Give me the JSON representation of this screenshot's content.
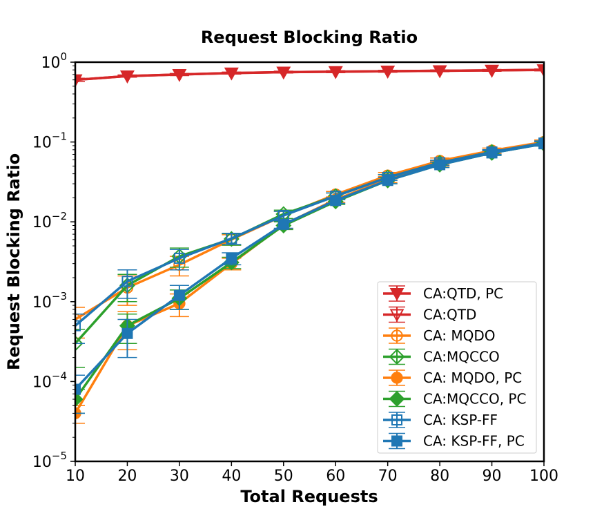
{
  "chart_data": {
    "type": "line",
    "title": "Request Blocking Ratio",
    "xlabel": "Total Requests",
    "ylabel": "Request Blocking Ratio",
    "x": [
      10,
      20,
      30,
      40,
      50,
      60,
      70,
      80,
      90,
      100
    ],
    "xlim": [
      10,
      100
    ],
    "ylim": [
      1e-05,
      1
    ],
    "yscale": "log",
    "x_ticks": [
      "10",
      "20",
      "30",
      "40",
      "50",
      "60",
      "70",
      "80",
      "90",
      "100"
    ],
    "y_ticks": [
      {
        "value": 1e-05,
        "base": "10",
        "exp": "−5"
      },
      {
        "value": 0.0001,
        "base": "10",
        "exp": "−4"
      },
      {
        "value": 0.001,
        "base": "10",
        "exp": "−3"
      },
      {
        "value": 0.01,
        "base": "10",
        "exp": "−2"
      },
      {
        "value": 0.1,
        "base": "10",
        "exp": "−1"
      },
      {
        "value": 1,
        "base": "10",
        "exp": "0"
      }
    ],
    "grid": false,
    "legend_position": "lower-right",
    "series": [
      {
        "name": "CA:QTD, PC",
        "color": "#d62728",
        "marker": "triangle-down",
        "filled": true,
        "values": [
          0.6,
          0.67,
          0.7,
          0.73,
          0.75,
          0.76,
          0.77,
          0.78,
          0.79,
          0.8
        ],
        "errors": [
          0.03,
          0.02,
          0.02,
          0.02,
          0.02,
          0.02,
          0.02,
          0.02,
          0.02,
          0.02
        ]
      },
      {
        "name": "CA:QTD",
        "color": "#d62728",
        "marker": "triangle-down",
        "filled": false,
        "values": [
          0.6,
          0.67,
          0.7,
          0.73,
          0.75,
          0.76,
          0.77,
          0.78,
          0.79,
          0.8
        ],
        "errors": [
          0.03,
          0.02,
          0.02,
          0.02,
          0.02,
          0.02,
          0.02,
          0.02,
          0.02,
          0.02
        ]
      },
      {
        "name": "CA: MQDO",
        "color": "#ff7f0e",
        "marker": "circle",
        "filled": false,
        "values": [
          0.0006,
          0.0015,
          0.0029,
          0.006,
          0.012,
          0.022,
          0.038,
          0.058,
          0.078,
          0.1
        ],
        "errors": [
          0.00025,
          0.0006,
          0.0008,
          0.0009,
          0.0015,
          0.002,
          0.0035,
          0.005,
          0.006,
          0.006
        ]
      },
      {
        "name": "CA:MQCCO",
        "color": "#2ca02c",
        "marker": "diamond",
        "filled": false,
        "values": [
          0.0003,
          0.0016,
          0.0037,
          0.0061,
          0.0125,
          0.021,
          0.036,
          0.055,
          0.075,
          0.097
        ],
        "errors": [
          0.00015,
          0.0006,
          0.001,
          0.001,
          0.0015,
          0.002,
          0.003,
          0.004,
          0.005,
          0.006
        ]
      },
      {
        "name": "CA: MQDO, PC",
        "color": "#ff7f0e",
        "marker": "circle",
        "filled": true,
        "values": [
          4e-05,
          0.0005,
          0.00095,
          0.003,
          0.0092,
          0.019,
          0.034,
          0.054,
          0.075,
          0.097
        ],
        "errors": [
          1e-05,
          0.00025,
          0.0003,
          0.0005,
          0.001,
          0.0015,
          0.003,
          0.004,
          0.005,
          0.006
        ]
      },
      {
        "name": "CA:MQCCO, PC",
        "color": "#2ca02c",
        "marker": "diamond",
        "filled": true,
        "values": [
          6e-05,
          0.0005,
          0.0011,
          0.0031,
          0.009,
          0.018,
          0.033,
          0.052,
          0.073,
          0.095
        ],
        "errors": [
          2e-05,
          0.0002,
          0.0003,
          0.0005,
          0.001,
          0.0015,
          0.003,
          0.004,
          0.005,
          0.006
        ]
      },
      {
        "name": "CA: KSP-FF",
        "color": "#1f77b4",
        "marker": "square",
        "filled": false,
        "values": [
          0.0005,
          0.0018,
          0.0035,
          0.0062,
          0.012,
          0.021,
          0.036,
          0.055,
          0.075,
          0.097
        ],
        "errors": [
          0.0002,
          0.0007,
          0.001,
          0.001,
          0.0015,
          0.002,
          0.003,
          0.004,
          0.005,
          0.006
        ]
      },
      {
        "name": "CA: KSP-FF, PC",
        "color": "#1f77b4",
        "marker": "square",
        "filled": true,
        "values": [
          8e-05,
          0.0004,
          0.0012,
          0.0035,
          0.0093,
          0.0185,
          0.033,
          0.052,
          0.073,
          0.095
        ],
        "errors": [
          4e-05,
          0.0002,
          0.0004,
          0.0006,
          0.001,
          0.0015,
          0.003,
          0.004,
          0.005,
          0.006
        ]
      }
    ]
  }
}
